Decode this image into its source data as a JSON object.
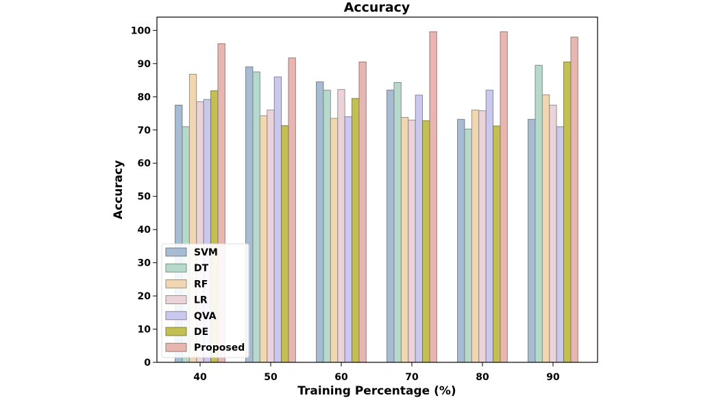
{
  "chart_data": {
    "type": "bar",
    "title": "Accuracy",
    "xlabel": "Training Percentage (%)",
    "ylabel": "Accuracy",
    "categories": [
      "40",
      "50",
      "60",
      "70",
      "80",
      "90"
    ],
    "ylim": [
      0,
      104
    ],
    "yticks": [
      0,
      10,
      20,
      30,
      40,
      50,
      60,
      70,
      80,
      90,
      100
    ],
    "grid": false,
    "legend_position": "lower-left",
    "series": [
      {
        "name": "SVM",
        "color": "#a7bcd2",
        "values": [
          77.5,
          89.0,
          84.5,
          82.0,
          73.2,
          73.2
        ]
      },
      {
        "name": "DT",
        "color": "#b6d9cc",
        "values": [
          71.0,
          87.5,
          82.0,
          84.3,
          70.3,
          89.5
        ]
      },
      {
        "name": "RF",
        "color": "#f0d6b1",
        "values": [
          86.8,
          74.3,
          73.5,
          73.8,
          76.0,
          80.6
        ]
      },
      {
        "name": "LR",
        "color": "#ead3d9",
        "values": [
          78.5,
          76.0,
          82.2,
          73.0,
          75.8,
          77.5
        ]
      },
      {
        "name": "QVA",
        "color": "#cac8ec",
        "values": [
          79.2,
          86.0,
          74.0,
          80.5,
          82.0,
          71.0
        ]
      },
      {
        "name": "DE",
        "color": "#c3bf52",
        "values": [
          81.8,
          71.3,
          79.5,
          72.8,
          71.2,
          90.5
        ]
      },
      {
        "name": "Proposed",
        "color": "#e8b6b1",
        "values": [
          96.0,
          91.7,
          90.5,
          99.6,
          99.6,
          98.0
        ]
      }
    ]
  }
}
